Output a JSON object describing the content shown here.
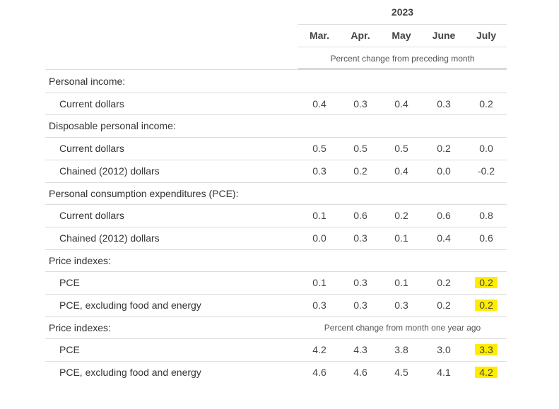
{
  "table": {
    "year": "2023",
    "months": [
      "Mar.",
      "Apr.",
      "May",
      "June",
      "July"
    ],
    "subheader_monthly": "Percent change from preceding month",
    "subheader_yearly": "Percent change from month one year ago",
    "highlight_color": "#ffec00",
    "rows": [
      {
        "label": "Personal income:",
        "kind": "section",
        "values": []
      },
      {
        "label": "Current dollars",
        "kind": "data",
        "values": [
          "0.4",
          "0.3",
          "0.4",
          "0.3",
          "0.2"
        ]
      },
      {
        "label": "Disposable personal income:",
        "kind": "section",
        "values": []
      },
      {
        "label": "Current dollars",
        "kind": "data",
        "values": [
          "0.5",
          "0.5",
          "0.5",
          "0.2",
          "0.0"
        ]
      },
      {
        "label": "Chained (2012) dollars",
        "kind": "data",
        "values": [
          "0.3",
          "0.2",
          "0.4",
          "0.0",
          "-0.2"
        ]
      },
      {
        "label": "Personal consumption expenditures (PCE):",
        "kind": "section",
        "values": []
      },
      {
        "label": "Current dollars",
        "kind": "data",
        "values": [
          "0.1",
          "0.6",
          "0.2",
          "0.6",
          "0.8"
        ]
      },
      {
        "label": "Chained (2012) dollars",
        "kind": "data",
        "values": [
          "0.0",
          "0.3",
          "0.1",
          "0.4",
          "0.6"
        ]
      },
      {
        "label": "Price indexes:",
        "kind": "section",
        "values": []
      },
      {
        "label": "PCE",
        "kind": "data",
        "values": [
          "0.1",
          "0.3",
          "0.1",
          "0.2",
          "0.2"
        ],
        "highlight_last": true
      },
      {
        "label": "PCE, excluding food and energy",
        "kind": "data",
        "values": [
          "0.3",
          "0.3",
          "0.3",
          "0.2",
          "0.2"
        ],
        "highlight_last": true
      },
      {
        "label": "Price indexes:",
        "kind": "section",
        "values": []
      },
      {
        "label": "PCE",
        "kind": "data",
        "values": [
          "4.2",
          "4.3",
          "3.8",
          "3.0",
          "3.3"
        ],
        "highlight_last": true
      },
      {
        "label": "PCE, excluding food and energy",
        "kind": "data",
        "values": [
          "4.6",
          "4.6",
          "4.5",
          "4.1",
          "4.2"
        ],
        "highlight_last": true
      }
    ]
  }
}
